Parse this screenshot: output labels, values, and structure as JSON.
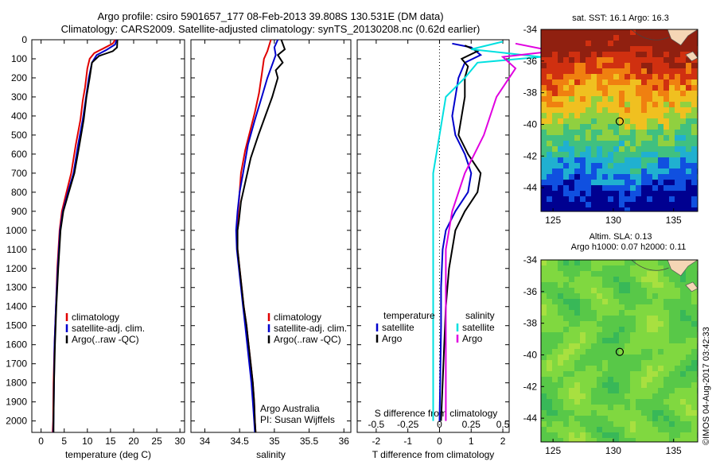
{
  "header": {
    "line1": "Argo profile: csiro 5901657_177 08-Feb-2013 39.808S 130.531E (DM data)",
    "line2": "Climatology: CARS2009. Satellite-adjusted climatology: synTS_20130208.nc (0.62d earlier)"
  },
  "watermark": "©IMOS 04-Aug-2017 03:42:33",
  "colors": {
    "climatology": "#e00000",
    "satellite": "#0000cc",
    "argo": "#000000",
    "sal_satellite": "#00e0e0",
    "sal_argo": "#e000e0"
  },
  "chart_data": [
    {
      "type": "line",
      "xlabel": "temperature (deg C)",
      "ylabel": "",
      "xlim": [
        -2,
        31
      ],
      "ylim": [
        2060,
        0
      ],
      "xticks": [
        0,
        5,
        10,
        15,
        20,
        25,
        30
      ],
      "yticks": [
        0,
        100,
        200,
        300,
        400,
        500,
        600,
        700,
        800,
        900,
        1000,
        1100,
        1200,
        1300,
        1400,
        1500,
        1600,
        1700,
        1800,
        1900,
        2000
      ],
      "legend": [
        "climatology",
        "satellite-adj. clim.",
        "Argo(..raw -QC)"
      ],
      "series": [
        {
          "name": "climatology",
          "color": "#e00000",
          "points": [
            [
              16,
              0
            ],
            [
              15.5,
              20
            ],
            [
              13.5,
              45
            ],
            [
              11.5,
              70
            ],
            [
              10.5,
              100
            ],
            [
              10,
              150
            ],
            [
              9.5,
              250
            ],
            [
              9,
              320
            ],
            [
              8.5,
              420
            ],
            [
              7.5,
              550
            ],
            [
              6.5,
              700
            ],
            [
              5.5,
              800
            ],
            [
              4.5,
              900
            ],
            [
              4,
              1000
            ],
            [
              3.5,
              1200
            ],
            [
              3.2,
              1400
            ],
            [
              2.9,
              1600
            ],
            [
              2.7,
              1800
            ],
            [
              2.6,
              2000
            ],
            [
              2.5,
              2060
            ]
          ]
        },
        {
          "name": "satellite-adj. clim.",
          "color": "#0000cc",
          "points": [
            [
              16.3,
              0
            ],
            [
              16,
              25
            ],
            [
              14,
              55
            ],
            [
              12,
              80
            ],
            [
              11,
              120
            ],
            [
              10.3,
              200
            ],
            [
              9.6,
              320
            ],
            [
              9,
              420
            ],
            [
              8,
              550
            ],
            [
              7,
              700
            ],
            [
              5.8,
              800
            ],
            [
              4.7,
              900
            ],
            [
              4.1,
              1000
            ],
            [
              3.6,
              1200
            ],
            [
              3.2,
              1400
            ],
            [
              2.9,
              1600
            ],
            [
              2.8,
              1800
            ],
            [
              2.7,
              2000
            ],
            [
              2.6,
              2060
            ]
          ]
        },
        {
          "name": "Argo(..raw -QC)",
          "color": "#000000",
          "points": [
            [
              16.5,
              0
            ],
            [
              16.4,
              40
            ],
            [
              15.5,
              60
            ],
            [
              12.5,
              85
            ],
            [
              11,
              120
            ],
            [
              10.5,
              200
            ],
            [
              9.8,
              300
            ],
            [
              9.2,
              420
            ],
            [
              8.3,
              550
            ],
            [
              7.2,
              700
            ],
            [
              6,
              800
            ],
            [
              4.8,
              900
            ],
            [
              4.2,
              1000
            ],
            [
              3.7,
              1200
            ],
            [
              3.3,
              1400
            ],
            [
              3,
              1600
            ],
            [
              2.8,
              1800
            ],
            [
              2.7,
              2000
            ],
            [
              2.7,
              2060
            ]
          ]
        }
      ]
    },
    {
      "type": "line",
      "xlabel": "salinity",
      "xlim": [
        33.8,
        36.1
      ],
      "ylim": [
        2060,
        0
      ],
      "xticks": [
        34,
        34.5,
        35,
        35.5,
        36
      ],
      "legend": [
        "climatology",
        "satellite-adj. clim.",
        "Argo(..raw -QC)"
      ],
      "annotation": [
        "Argo Australia",
        "PI: Susan Wijffels"
      ],
      "series": [
        {
          "name": "climatology",
          "color": "#e00000",
          "points": [
            [
              34.95,
              0
            ],
            [
              34.9,
              60
            ],
            [
              34.85,
              100
            ],
            [
              34.82,
              180
            ],
            [
              34.78,
              280
            ],
            [
              34.72,
              380
            ],
            [
              34.65,
              480
            ],
            [
              34.58,
              580
            ],
            [
              34.52,
              700
            ],
            [
              34.5,
              800
            ],
            [
              34.48,
              900
            ],
            [
              34.46,
              1000
            ],
            [
              34.47,
              1100
            ],
            [
              34.5,
              1200
            ],
            [
              34.53,
              1300
            ],
            [
              34.56,
              1400
            ],
            [
              34.6,
              1500
            ],
            [
              34.63,
              1600
            ],
            [
              34.66,
              1700
            ],
            [
              34.69,
              1800
            ],
            [
              34.71,
              1900
            ],
            [
              34.72,
              2000
            ],
            [
              34.73,
              2060
            ]
          ]
        },
        {
          "name": "satellite-adj. clim.",
          "color": "#0000cc",
          "points": [
            [
              35.05,
              0
            ],
            [
              35,
              40
            ],
            [
              35.02,
              80
            ],
            [
              34.98,
              120
            ],
            [
              34.9,
              200
            ],
            [
              34.82,
              300
            ],
            [
              34.72,
              420
            ],
            [
              34.62,
              550
            ],
            [
              34.55,
              700
            ],
            [
              34.5,
              800
            ],
            [
              34.47,
              900
            ],
            [
              34.45,
              1000
            ],
            [
              34.46,
              1100
            ],
            [
              34.49,
              1200
            ],
            [
              34.52,
              1300
            ],
            [
              34.55,
              1400
            ],
            [
              34.58,
              1500
            ],
            [
              34.61,
              1600
            ],
            [
              34.64,
              1700
            ],
            [
              34.67,
              1800
            ],
            [
              34.69,
              1900
            ],
            [
              34.71,
              2000
            ],
            [
              34.72,
              2060
            ]
          ]
        },
        {
          "name": "Argo(..raw -QC)",
          "color": "#000000",
          "points": [
            [
              35.1,
              0
            ],
            [
              35.15,
              50
            ],
            [
              35.05,
              80
            ],
            [
              35.12,
              120
            ],
            [
              35.02,
              160
            ],
            [
              35.05,
              200
            ],
            [
              34.97,
              300
            ],
            [
              34.87,
              400
            ],
            [
              34.77,
              500
            ],
            [
              34.66,
              620
            ],
            [
              34.58,
              750
            ],
            [
              34.52,
              850
            ],
            [
              34.49,
              950
            ],
            [
              34.47,
              1000
            ],
            [
              34.47,
              1100
            ],
            [
              34.5,
              1200
            ],
            [
              34.53,
              1300
            ],
            [
              34.56,
              1400
            ],
            [
              34.6,
              1500
            ],
            [
              34.63,
              1600
            ],
            [
              34.66,
              1700
            ],
            [
              34.69,
              1800
            ],
            [
              34.71,
              1900
            ],
            [
              34.72,
              2000
            ],
            [
              34.73,
              2060
            ]
          ]
        }
      ]
    },
    {
      "type": "line",
      "xlabel_bottom": "T difference from climatology",
      "xlabel_top": "S difference from climatology",
      "xlim_T": [
        -2.6,
        2.2
      ],
      "xticks_T": [
        -2,
        -1,
        0,
        1,
        2
      ],
      "xticks_S": [
        -0.5,
        -0.25,
        0,
        0.25,
        0.5
      ],
      "ylim": [
        2060,
        0
      ],
      "legend_titles": [
        "temperature",
        "salinity"
      ],
      "legend": [
        "satellite",
        "Argo",
        "satellite",
        "Argo"
      ],
      "series": [
        {
          "name": "satellite",
          "group": "temperature",
          "color": "#0000cc",
          "points": [
            [
              0.4,
              20
            ],
            [
              1,
              40
            ],
            [
              1.3,
              80
            ],
            [
              0.8,
              120
            ],
            [
              0.6,
              200
            ],
            [
              0.5,
              300
            ],
            [
              0.4,
              400
            ],
            [
              0.5,
              500
            ],
            [
              0.8,
              600
            ],
            [
              1,
              700
            ],
            [
              0.9,
              800
            ],
            [
              0.5,
              900
            ],
            [
              0.2,
              1000
            ],
            [
              0.1,
              1100
            ],
            [
              0.05,
              1300
            ],
            [
              0.05,
              1500
            ],
            [
              0.02,
              1800
            ],
            [
              0,
              2000
            ]
          ]
        },
        {
          "name": "Argo",
          "group": "temperature",
          "color": "#000000",
          "points": [
            [
              0.8,
              30
            ],
            [
              1.2,
              60
            ],
            [
              0.7,
              100
            ],
            [
              0.9,
              140
            ],
            [
              0.8,
              200
            ],
            [
              0.8,
              300
            ],
            [
              0.7,
              400
            ],
            [
              0.6,
              500
            ],
            [
              0.9,
              600
            ],
            [
              1.3,
              700
            ],
            [
              1.2,
              800
            ],
            [
              0.8,
              900
            ],
            [
              0.5,
              1000
            ],
            [
              0.4,
              1100
            ],
            [
              0.3,
              1200
            ],
            [
              0.2,
              1400
            ],
            [
              0.15,
              1600
            ],
            [
              0.1,
              1800
            ],
            [
              0.05,
              2000
            ]
          ]
        },
        {
          "name": "satellite",
          "group": "salinity",
          "color": "#00e0e0",
          "points": [
            [
              0.5,
              10
            ],
            [
              0.25,
              50
            ],
            [
              0.8,
              90
            ],
            [
              0.3,
              120
            ],
            [
              0.2,
              200
            ],
            [
              0.05,
              300
            ],
            [
              0,
              500
            ],
            [
              -0.05,
              700
            ],
            [
              -0.05,
              900
            ],
            [
              -0.05,
              1100
            ],
            [
              -0.05,
              1400
            ],
            [
              -0.05,
              1700
            ],
            [
              -0.05,
              2000
            ]
          ]
        },
        {
          "name": "Argo",
          "group": "salinity",
          "color": "#e000e0",
          "points": [
            [
              0.6,
              20
            ],
            [
              0.9,
              60
            ],
            [
              0.5,
              90
            ],
            [
              0.6,
              150
            ],
            [
              0.45,
              300
            ],
            [
              0.35,
              500
            ],
            [
              0.2,
              700
            ],
            [
              0.1,
              900
            ],
            [
              0.05,
              1100
            ],
            [
              0.05,
              1400
            ],
            [
              0.05,
              1700
            ],
            [
              0.05,
              2000
            ]
          ]
        }
      ]
    },
    {
      "type": "heatmap",
      "title": "sat. SST: 16.1 Argo: 16.3",
      "xlim": [
        124,
        137
      ],
      "ylim": [
        -45.5,
        -34
      ],
      "xticks": [
        125,
        130,
        135
      ],
      "yticks": [
        -34,
        -36,
        -38,
        -40,
        -42,
        -44
      ],
      "marker": [
        130.53,
        -39.81
      ],
      "palette": [
        "#000090",
        "#1050e0",
        "#20b0d0",
        "#40c080",
        "#90d040",
        "#f0c020",
        "#f08010",
        "#d03010",
        "#902010"
      ]
    },
    {
      "type": "heatmap",
      "title_line1": "Altim. SLA: 0.13",
      "title_line2": "Argo h1000: 0.07 h2000: 0.11",
      "xlim": [
        124,
        137
      ],
      "ylim": [
        -45.5,
        -34
      ],
      "xticks": [
        125,
        130,
        135
      ],
      "yticks": [
        -34,
        -36,
        -38,
        -40,
        -42,
        -44
      ],
      "marker": [
        130.53,
        -39.81
      ],
      "palette": [
        "#38b858",
        "#58c848",
        "#80d840",
        "#a8e040"
      ]
    }
  ]
}
